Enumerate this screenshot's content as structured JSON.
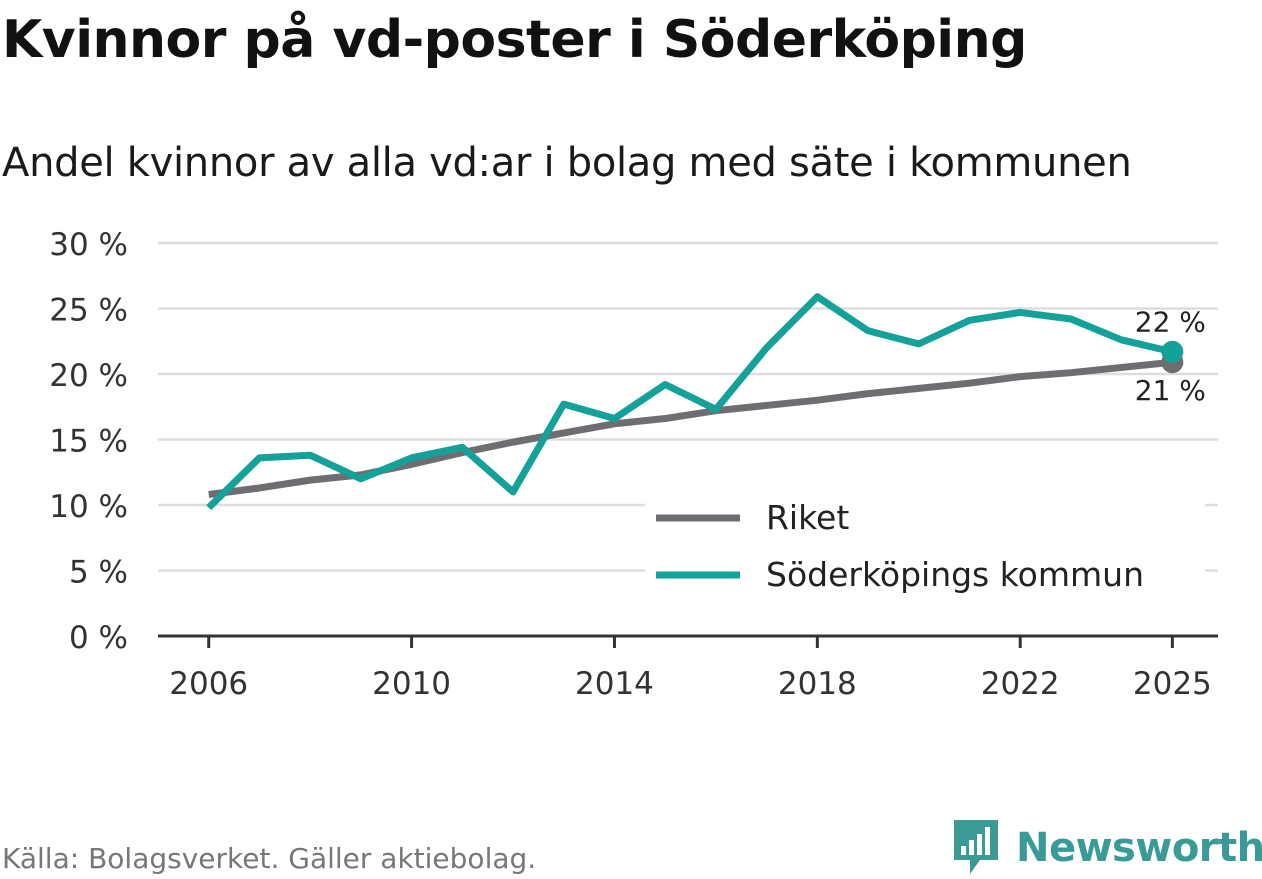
{
  "title": "Kvinnor på vd-poster i Söderköping",
  "subtitle": "Andel kvinnor av alla vd:ar i bolag med säte i kommunen",
  "source": "Källa: Bolagsverket. Gäller aktiebolag.",
  "brand": {
    "name": "Newsworthy",
    "color": "#3a9a96"
  },
  "chart_data": {
    "type": "line",
    "title": "Andel kvinnor av alla vd:ar i bolag med säte i kommunen",
    "xlabel": "",
    "ylabel": "",
    "x": [
      2006,
      2007,
      2008,
      2009,
      2010,
      2011,
      2012,
      2013,
      2014,
      2015,
      2016,
      2017,
      2018,
      2019,
      2020,
      2021,
      2022,
      2023,
      2024,
      2025
    ],
    "xticks": [
      2006,
      2010,
      2014,
      2018,
      2022,
      2025
    ],
    "xlim": [
      2005,
      2025.9
    ],
    "ylim": [
      0,
      30
    ],
    "yticks": [
      0,
      5,
      10,
      15,
      20,
      25,
      30
    ],
    "ytick_labels": [
      "0 %",
      "5 %",
      "10 %",
      "15 %",
      "20 %",
      "25 %",
      "30 %"
    ],
    "grid": true,
    "legend_position": "bottom-right",
    "series": [
      {
        "name": "Riket",
        "color": "#6e6d72",
        "values": [
          10.8,
          11.3,
          11.9,
          12.3,
          13.1,
          14.0,
          14.8,
          15.5,
          16.2,
          16.6,
          17.2,
          17.6,
          18.0,
          18.5,
          18.9,
          19.3,
          19.8,
          20.1,
          20.5,
          20.9
        ],
        "end_label": "21 %"
      },
      {
        "name": "Söderköpings kommun",
        "color": "#14a199",
        "values": [
          9.8,
          13.6,
          13.8,
          12.0,
          13.6,
          14.4,
          11.0,
          17.7,
          16.6,
          19.2,
          17.3,
          22.0,
          25.9,
          23.3,
          22.3,
          24.1,
          24.7,
          24.2,
          22.6,
          21.7
        ],
        "end_label": "22 %"
      }
    ]
  }
}
